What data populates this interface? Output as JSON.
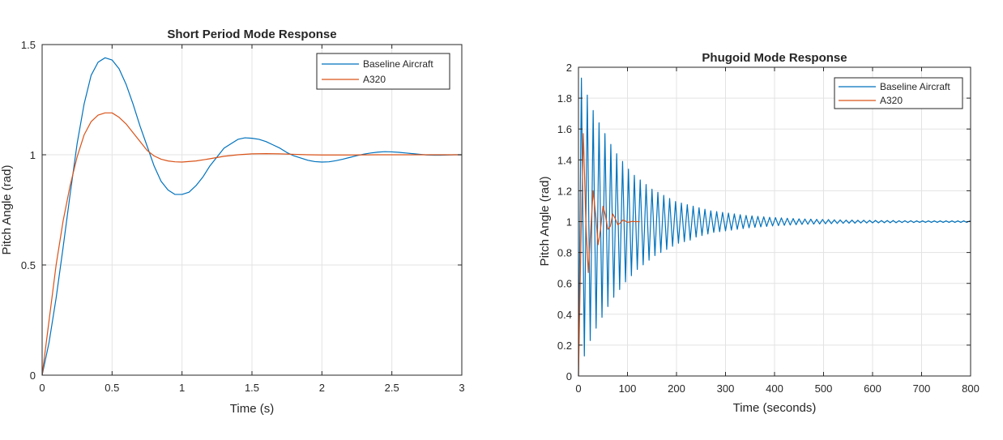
{
  "chart_data": [
    {
      "type": "line",
      "title": "Short Period Mode Response",
      "xlabel": "Time (s)",
      "ylabel": "Pitch Angle (rad)",
      "xlim": [
        0,
        3
      ],
      "ylim": [
        0,
        1.5
      ],
      "xticks": [
        0,
        0.5,
        1,
        1.5,
        2,
        2.5,
        3
      ],
      "xtick_labels": [
        "0",
        "0.5",
        "1",
        "1.5",
        "2",
        "2.5",
        "3"
      ],
      "yticks": [
        0,
        0.5,
        1,
        1.5
      ],
      "ytick_labels": [
        "0",
        "0.5",
        "1",
        "1.5"
      ],
      "grid": true,
      "legend_position": "top-right",
      "series": [
        {
          "name": "Baseline Aircraft",
          "color": "#0072BD",
          "x": [
            0,
            0.05,
            0.1,
            0.15,
            0.2,
            0.25,
            0.3,
            0.35,
            0.4,
            0.45,
            0.5,
            0.55,
            0.6,
            0.65,
            0.7,
            0.75,
            0.8,
            0.85,
            0.9,
            0.95,
            1.0,
            1.05,
            1.1,
            1.15,
            1.2,
            1.25,
            1.3,
            1.35,
            1.4,
            1.45,
            1.5,
            1.55,
            1.6,
            1.65,
            1.7,
            1.75,
            1.8,
            1.85,
            1.9,
            1.95,
            2.0,
            2.05,
            2.1,
            2.15,
            2.2,
            2.25,
            2.3,
            2.35,
            2.4,
            2.45,
            2.5,
            2.55,
            2.6,
            2.65,
            2.7,
            2.75,
            2.8,
            2.85,
            2.9,
            2.95,
            3.0
          ],
          "y": [
            0,
            0.15,
            0.35,
            0.58,
            0.82,
            1.05,
            1.23,
            1.36,
            1.42,
            1.44,
            1.43,
            1.39,
            1.32,
            1.23,
            1.13,
            1.04,
            0.95,
            0.88,
            0.84,
            0.82,
            0.82,
            0.83,
            0.86,
            0.9,
            0.95,
            0.99,
            1.03,
            1.05,
            1.07,
            1.077,
            1.075,
            1.07,
            1.06,
            1.045,
            1.03,
            1.01,
            0.995,
            0.985,
            0.975,
            0.969,
            0.967,
            0.968,
            0.973,
            0.98,
            0.988,
            0.996,
            1.003,
            1.008,
            1.012,
            1.014,
            1.013,
            1.011,
            1.008,
            1.005,
            1.002,
            0.999,
            0.998,
            0.998,
            0.999,
            1.0,
            1.0
          ]
        },
        {
          "name": "A320",
          "color": "#D95319",
          "x": [
            0,
            0.05,
            0.1,
            0.15,
            0.2,
            0.25,
            0.3,
            0.35,
            0.4,
            0.45,
            0.5,
            0.55,
            0.6,
            0.65,
            0.7,
            0.75,
            0.8,
            0.85,
            0.9,
            0.95,
            1.0,
            1.1,
            1.2,
            1.3,
            1.4,
            1.5,
            1.6,
            1.7,
            1.8,
            1.9,
            2.0,
            2.2,
            2.4,
            2.6,
            2.8,
            3.0
          ],
          "y": [
            0,
            0.25,
            0.5,
            0.7,
            0.86,
            0.99,
            1.09,
            1.15,
            1.18,
            1.19,
            1.19,
            1.17,
            1.14,
            1.1,
            1.06,
            1.02,
            0.995,
            0.98,
            0.972,
            0.968,
            0.967,
            0.972,
            0.982,
            0.993,
            1.0,
            1.004,
            1.005,
            1.004,
            1.002,
            1.0,
            0.999,
            0.999,
            1.0,
            1.0,
            1.0,
            1.0
          ]
        }
      ]
    },
    {
      "type": "line",
      "title": "Phugoid Mode Response",
      "xlabel": "Time (seconds)",
      "ylabel": "Pitch Angle (rad)",
      "xlim": [
        0,
        800
      ],
      "ylim": [
        0,
        2
      ],
      "xticks": [
        0,
        100,
        200,
        300,
        400,
        500,
        600,
        700,
        800
      ],
      "xtick_labels": [
        "0",
        "100",
        "200",
        "300",
        "400",
        "500",
        "600",
        "700",
        "800"
      ],
      "yticks": [
        0,
        0.2,
        0.4,
        0.6,
        0.8,
        1,
        1.2,
        1.4,
        1.6,
        1.8,
        2
      ],
      "ytick_labels": [
        "0",
        "0.2",
        "0.4",
        "0.6",
        "0.8",
        "1",
        "1.2",
        "1.4",
        "1.6",
        "1.8",
        "2"
      ],
      "grid": true,
      "legend_position": "top-right",
      "series": [
        {
          "name": "Baseline Aircraft",
          "color": "#0072BD",
          "x": [
            0,
            6,
            12,
            18,
            24,
            30,
            36,
            42,
            48,
            54,
            60,
            66,
            72,
            78,
            84,
            90,
            96,
            102,
            108,
            114,
            120,
            126,
            132,
            138,
            144,
            150,
            156,
            162,
            168,
            174,
            180,
            186,
            192,
            198,
            204,
            210,
            216,
            222,
            228,
            234,
            240,
            246,
            252,
            258,
            264,
            270,
            276,
            282,
            288,
            294,
            300,
            306,
            312,
            318,
            324,
            330,
            336,
            342,
            348,
            354,
            360,
            366,
            372,
            378,
            384,
            390,
            396,
            402,
            408,
            414,
            420,
            426,
            432,
            438,
            444,
            450,
            456,
            462,
            468,
            474,
            480,
            486,
            492,
            498,
            504,
            510,
            516,
            522,
            528,
            534,
            540,
            546,
            552,
            558,
            564,
            570,
            576,
            582,
            588,
            594,
            600,
            606,
            612,
            618,
            624,
            630,
            636,
            642,
            648,
            654,
            660,
            666,
            672,
            678,
            684,
            690,
            696,
            702,
            708,
            714,
            720,
            726,
            732,
            738,
            744,
            750,
            756,
            762,
            768,
            774,
            780,
            786,
            792,
            798,
            800
          ],
          "y": [
            0,
            1.93,
            0.13,
            1.82,
            0.23,
            1.72,
            0.31,
            1.64,
            0.38,
            1.57,
            0.45,
            1.5,
            0.51,
            1.44,
            0.56,
            1.39,
            0.61,
            1.34,
            0.65,
            1.3,
            0.69,
            1.27,
            0.72,
            1.24,
            0.75,
            1.21,
            0.78,
            1.19,
            0.8,
            1.17,
            0.82,
            1.15,
            0.84,
            1.13,
            0.86,
            1.12,
            0.87,
            1.11,
            0.88,
            1.1,
            0.9,
            1.09,
            0.91,
            1.08,
            0.92,
            1.07,
            0.93,
            1.065,
            0.935,
            1.06,
            0.94,
            1.055,
            0.945,
            1.05,
            0.95,
            1.045,
            0.955,
            1.04,
            0.96,
            1.037,
            0.963,
            1.034,
            0.966,
            1.031,
            0.969,
            1.028,
            0.972,
            1.026,
            0.974,
            1.024,
            0.976,
            1.022,
            0.978,
            1.02,
            0.98,
            1.018,
            0.982,
            1.017,
            0.983,
            1.016,
            0.984,
            1.015,
            0.985,
            1.014,
            0.986,
            1.013,
            0.987,
            1.012,
            0.988,
            1.011,
            0.989,
            1.01,
            0.99,
            1.01,
            0.99,
            1.009,
            0.991,
            1.009,
            0.991,
            1.008,
            0.992,
            1.008,
            0.992,
            1.007,
            0.993,
            1.007,
            0.993,
            1.007,
            0.993,
            1.006,
            0.994,
            1.006,
            0.994,
            1.006,
            0.994,
            1.005,
            0.995,
            1.005,
            0.995,
            1.005,
            0.995,
            1.005,
            0.995,
            1.005,
            0.995,
            1.005,
            0.995,
            1.005,
            0.995,
            1.005,
            0.995,
            1.005,
            0.995,
            1.004,
            1.0
          ]
        },
        {
          "name": "A320",
          "color": "#D95319",
          "x": [
            0,
            5,
            10,
            15,
            20,
            25,
            30,
            35,
            40,
            45,
            50,
            55,
            60,
            65,
            70,
            75,
            80,
            85,
            90,
            95,
            100,
            105,
            110,
            115,
            120,
            125
          ],
          "y": [
            0,
            0.85,
            1.57,
            1.0,
            0.67,
            0.95,
            1.2,
            1.05,
            0.85,
            0.95,
            1.1,
            1.04,
            0.95,
            0.97,
            1.05,
            1.02,
            0.98,
            0.99,
            1.01,
            1.005,
            0.995,
            0.998,
            1.002,
            1.0,
            1.0,
            1.0
          ]
        }
      ]
    }
  ]
}
